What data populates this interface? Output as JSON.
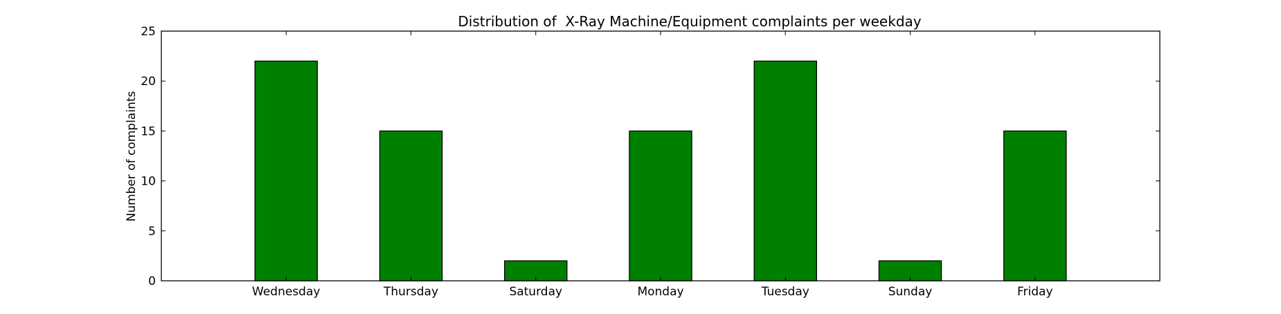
{
  "chart_data": {
    "type": "bar",
    "title": "Distribution of  X-Ray Machine/Equipment complaints per weekday",
    "xlabel": "",
    "ylabel": "Number of complaints",
    "categories": [
      "Wednesday",
      "Thursday",
      "Saturday",
      "Monday",
      "Tuesday",
      "Sunday",
      "Friday"
    ],
    "values": [
      22,
      15,
      2,
      15,
      22,
      2,
      15
    ],
    "ylim": [
      0,
      25
    ],
    "yticks": [
      "0",
      "5",
      "10",
      "15",
      "20",
      "25"
    ],
    "grid": false,
    "bar_color": "#008000",
    "edge_color": "#000000"
  }
}
